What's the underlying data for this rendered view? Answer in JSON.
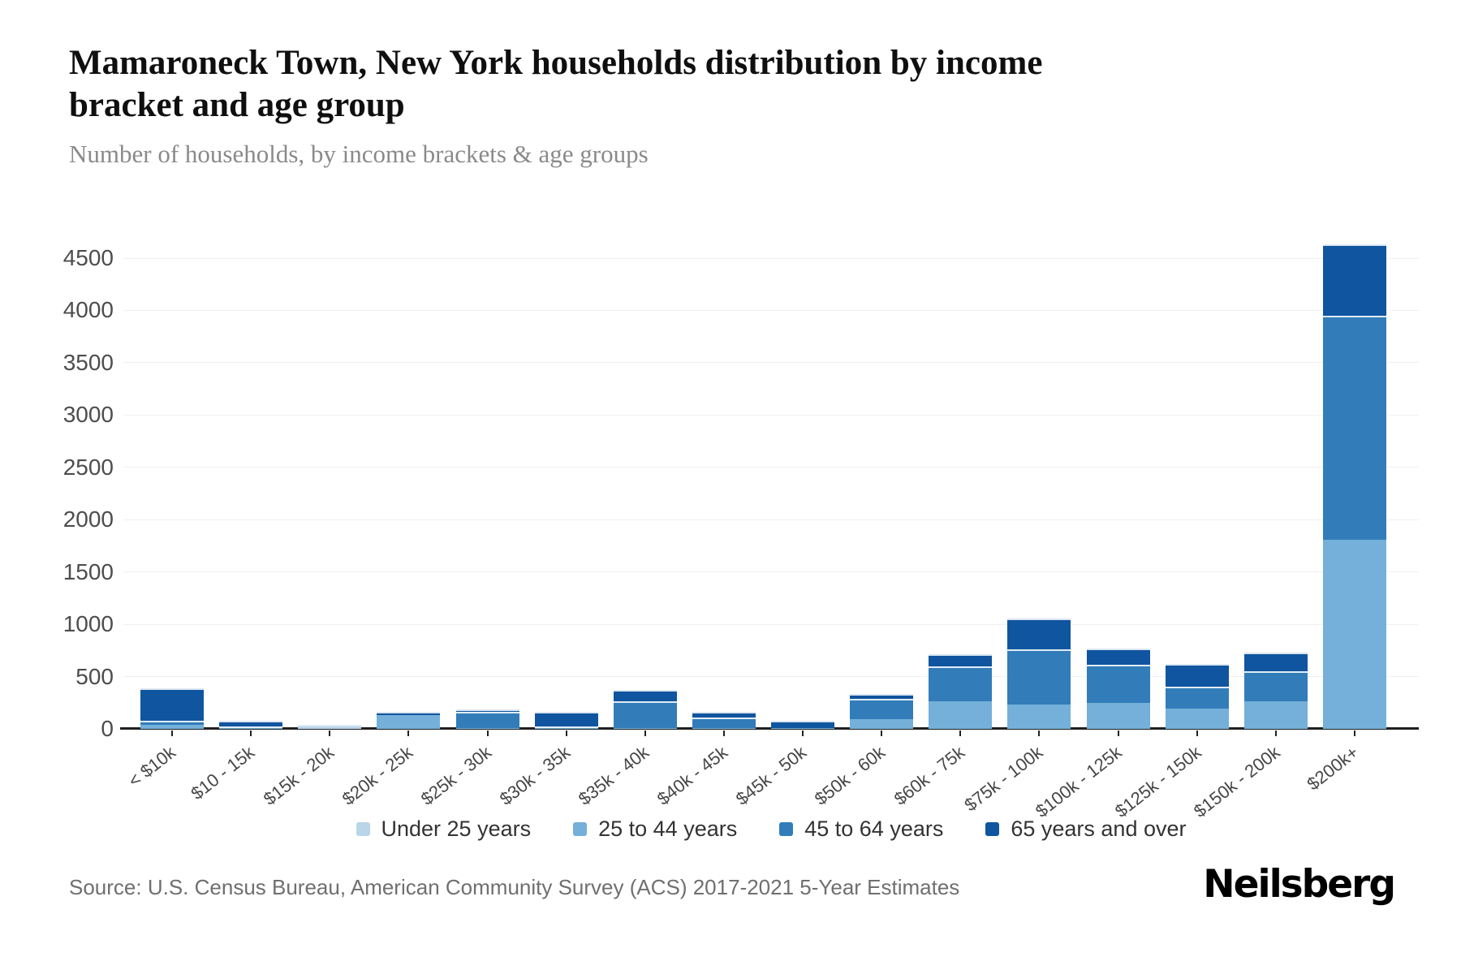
{
  "chart_data": {
    "type": "bar",
    "stacked": true,
    "title": "Mamaroneck Town, New York households distribution by income bracket and age group",
    "subtitle": "Number of households, by income brackets & age groups",
    "xlabel": "",
    "ylabel": "",
    "grid": true,
    "legend_position": "bottom",
    "y_axis": {
      "min": 0,
      "max": 4500,
      "step": 500
    },
    "categories": [
      "< $10k",
      "$10 - 15k",
      "$15k - 20k",
      "$20k - 25k",
      "$25k - 30k",
      "$30k - 35k",
      "$35k - 40k",
      "$40k - 45k",
      "$45k - 50k",
      "$50k - 60k",
      "$60k - 75k",
      "$75k - 100k",
      "$100k - 125k",
      "$125k - 150k",
      "$150k - 200k",
      "$200k+"
    ],
    "series": [
      {
        "name": "Under 25 years",
        "color": "#b9d5e8",
        "values": [
          0,
          0,
          30,
          0,
          0,
          0,
          0,
          0,
          0,
          0,
          0,
          0,
          0,
          0,
          0,
          0
        ]
      },
      {
        "name": "25 to 44 years",
        "color": "#74b0d9",
        "values": [
          40,
          10,
          0,
          135,
          10,
          12,
          10,
          10,
          10,
          90,
          265,
          235,
          245,
          195,
          260,
          1810
        ]
      },
      {
        "name": "45 to 64 years",
        "color": "#327db9",
        "values": [
          40,
          10,
          8,
          0,
          150,
          13,
          255,
          100,
          0,
          200,
          330,
          525,
          370,
          210,
          290,
          2140
        ]
      },
      {
        "name": "65 years and over",
        "color": "#10559f",
        "values": [
          310,
          55,
          0,
          30,
          25,
          140,
          105,
          50,
          70,
          40,
          120,
          295,
          155,
          215,
          180,
          680
        ]
      }
    ]
  },
  "source": "Source: U.S. Census Bureau, American Community Survey (ACS) 2017-2021 5-Year Estimates",
  "brand": "Neilsberg",
  "colors": {
    "grid": "#f0f0f0",
    "axis": "#1f1f1f",
    "tick_label": "#4d4d4d",
    "legend_text": "#333333",
    "subtitle_text": "#8a8a8a",
    "source_text": "#6f6f6f"
  }
}
